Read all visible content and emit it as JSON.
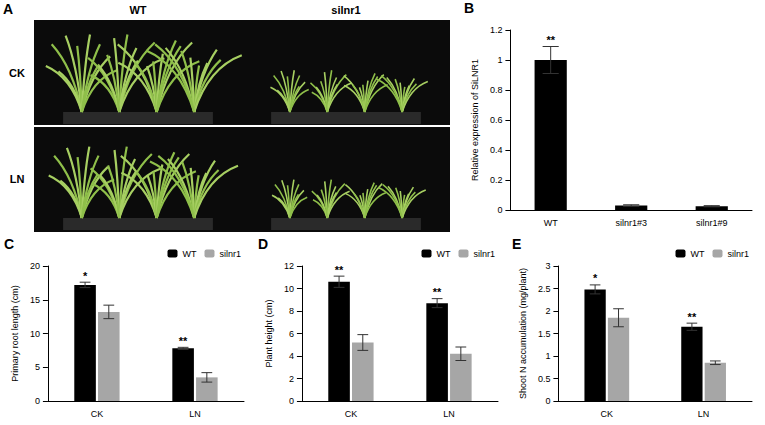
{
  "photo_panel": {
    "panel": "A",
    "columns": [
      "WT",
      "silnr1"
    ],
    "rows": [
      "CK",
      "LN"
    ]
  },
  "chart_data": [
    {
      "panel": "B",
      "type": "bar",
      "y_label": "Relative expression of SiLNR1",
      "categories": [
        "WT",
        "silnr1#3",
        "silnr1#9"
      ],
      "values": [
        1,
        0.03,
        0.025
      ],
      "errors": [
        0.09,
        0.005,
        0.004
      ],
      "color": "#000000",
      "annotations": [
        "**",
        null,
        null
      ],
      "ylim": [
        0,
        1.2
      ],
      "yticks": [
        0,
        0.2,
        0.4,
        0.6,
        0.8,
        1,
        1.2
      ],
      "grid": false
    },
    {
      "panel": "C",
      "type": "bar",
      "y_label": "Primary root length (cm)",
      "categories": [
        "CK",
        "LN"
      ],
      "series": [
        {
          "name": "WT",
          "color": "#000000",
          "values": [
            17.2,
            7.8
          ],
          "errors": [
            0.4,
            0.15
          ]
        },
        {
          "name": "silnr1",
          "color": "#a6a6a6",
          "values": [
            13.2,
            3.5
          ],
          "errors": [
            1.0,
            0.7
          ]
        }
      ],
      "annotations": [
        "*",
        "**"
      ],
      "ylim": [
        0,
        20
      ],
      "yticks": [
        0,
        5,
        10,
        15,
        20
      ],
      "grid": false,
      "legend": "top-right"
    },
    {
      "panel": "D",
      "type": "bar",
      "y_label": "Plant height (cm)",
      "categories": [
        "CK",
        "LN"
      ],
      "series": [
        {
          "name": "WT",
          "color": "#000000",
          "values": [
            10.6,
            8.7
          ],
          "errors": [
            0.5,
            0.4
          ]
        },
        {
          "name": "silnr1",
          "color": "#a6a6a6",
          "values": [
            5.2,
            4.2
          ],
          "errors": [
            0.7,
            0.6
          ]
        }
      ],
      "annotations": [
        "**",
        "**"
      ],
      "ylim": [
        0,
        12
      ],
      "yticks": [
        0,
        2,
        4,
        6,
        8,
        10,
        12
      ],
      "grid": false,
      "legend": "top-right"
    },
    {
      "panel": "E",
      "type": "bar",
      "y_label": "Shoot N accumulation (mg/plant)",
      "categories": [
        "CK",
        "LN"
      ],
      "series": [
        {
          "name": "WT",
          "color": "#000000",
          "values": [
            2.48,
            1.65
          ],
          "errors": [
            0.1,
            0.08
          ]
        },
        {
          "name": "silnr1",
          "color": "#a6a6a6",
          "values": [
            1.85,
            0.85
          ],
          "errors": [
            0.2,
            0.04
          ]
        }
      ],
      "annotations": [
        "*",
        "**"
      ],
      "ylim": [
        0,
        3
      ],
      "yticks": [
        0,
        0.5,
        1,
        1.5,
        2,
        2.5,
        3
      ],
      "grid": false,
      "legend": "top-right"
    }
  ]
}
